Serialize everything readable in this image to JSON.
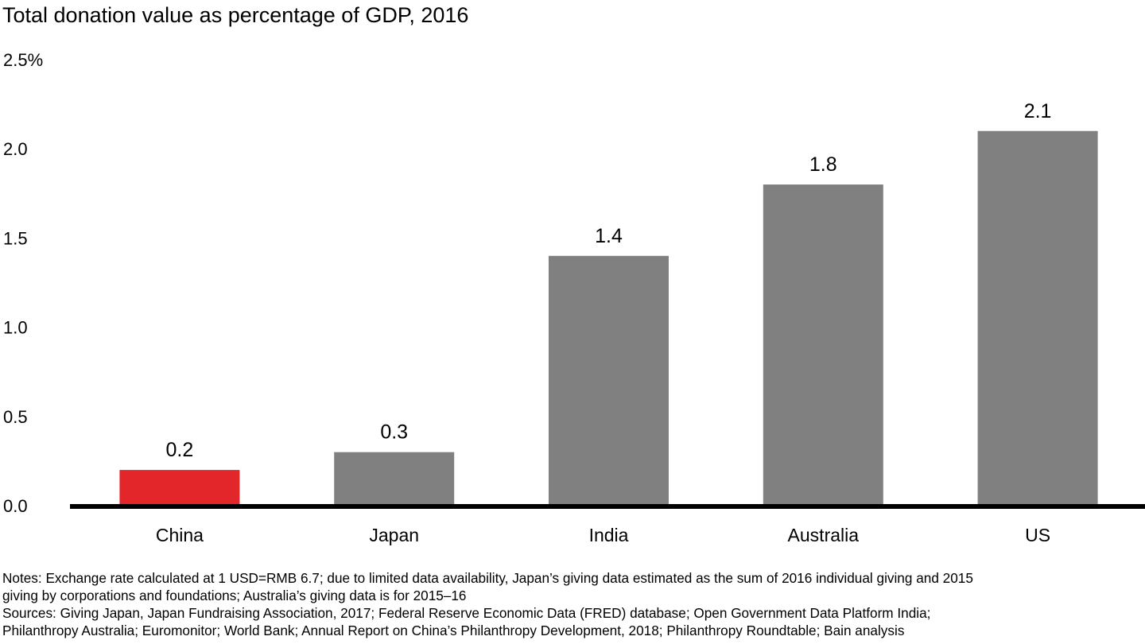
{
  "chart_data": {
    "type": "bar",
    "title": "Total donation value as percentage of GDP, 2016",
    "xlabel": "",
    "ylabel": "",
    "ylim": [
      0,
      2.5
    ],
    "yticks": [
      "0.0",
      "0.5",
      "1.0",
      "1.5",
      "2.0",
      "2.5%"
    ],
    "ytick_values": [
      0,
      0.5,
      1.0,
      1.5,
      2.0,
      2.5
    ],
    "grid": false,
    "categories": [
      "China",
      "Japan",
      "India",
      "Australia",
      "US"
    ],
    "values": [
      0.2,
      0.3,
      1.4,
      1.8,
      2.1
    ],
    "data_labels": [
      "0.2",
      "0.3",
      "1.4",
      "1.8",
      "2.1"
    ],
    "bar_colors": [
      "#e32629",
      "#808080",
      "#808080",
      "#808080",
      "#808080"
    ],
    "highlight_category": "China"
  },
  "footnotes": {
    "notes_line1": "Notes: Exchange rate calculated at 1 USD=RMB 6.7; due to limited data availability, Japan’s giving data estimated as the sum of 2016 individual giving and 2015",
    "notes_line2": "giving by corporations and foundations; Australia’s giving data is for 2015–16",
    "sources_line1": "Sources: Giving Japan, Japan Fundraising Association, 2017; Federal Reserve Economic Data (FRED) database; Open Government Data Platform India;",
    "sources_line2": "Philanthropy Australia; Euromonitor; World Bank; Annual Report on China’s Philanthropy Development, 2018; Philanthropy Roundtable; Bain analysis"
  },
  "colors": {
    "highlight": "#e32629",
    "bar": "#808080",
    "axis": "#000000"
  }
}
